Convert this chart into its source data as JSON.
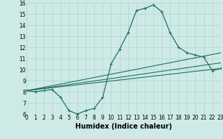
{
  "xlabel": "Humidex (Indice chaleur)",
  "bg_color": "#ceeae6",
  "grid_color": "#aed4cf",
  "line_color": "#1a6e64",
  "xmin": 0,
  "xmax": 23,
  "ymin": 6,
  "ymax": 16,
  "main_line_x": [
    0,
    1,
    2,
    3,
    4,
    5,
    6,
    7,
    8,
    9,
    10,
    11,
    12,
    13,
    14,
    15,
    16,
    17,
    18,
    19,
    20,
    21,
    22,
    23
  ],
  "main_line_y": [
    8.1,
    8.0,
    8.1,
    8.2,
    7.5,
    6.3,
    6.0,
    6.3,
    6.5,
    7.5,
    10.5,
    11.8,
    13.3,
    15.3,
    15.5,
    15.8,
    15.2,
    13.3,
    12.0,
    11.5,
    11.3,
    11.1,
    9.9,
    10.1
  ],
  "line2_x": [
    0,
    23
  ],
  "line2_y": [
    8.1,
    10.1
  ],
  "line3_x": [
    0,
    23
  ],
  "line3_y": [
    8.1,
    10.6
  ],
  "line4_x": [
    0,
    23
  ],
  "line4_y": [
    8.1,
    11.5
  ],
  "xtick_labels": [
    "0",
    "1",
    "2",
    "3",
    "4",
    "5",
    "6",
    "7",
    "8",
    "9",
    "10",
    "11",
    "12",
    "13",
    "14",
    "15",
    "16",
    "17",
    "18",
    "19",
    "20",
    "21",
    "22",
    "23"
  ],
  "ytick_labels": [
    "6",
    "7",
    "8",
    "9",
    "10",
    "11",
    "12",
    "13",
    "14",
    "15",
    "16"
  ],
  "fontsize_ticks": 5.5,
  "fontsize_xlabel": 7.0
}
